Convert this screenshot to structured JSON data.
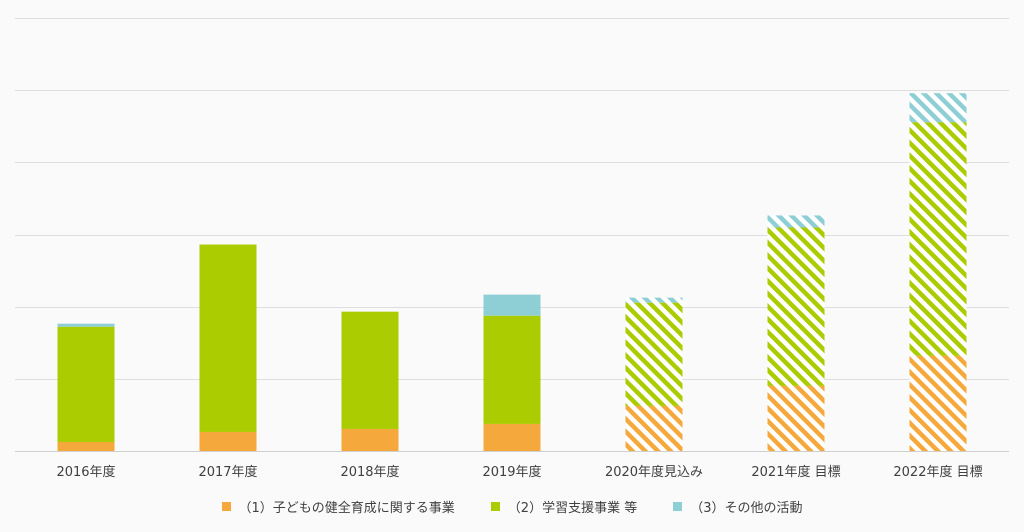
{
  "chart_data": {
    "type": "bar",
    "stacked": true,
    "categories": [
      "2016年度",
      "2017年度",
      "2018年度",
      "2019年度",
      "2020年度見込み",
      "2021年度 目標",
      "2022年度 目標"
    ],
    "projected": [
      false,
      false,
      false,
      false,
      true,
      true,
      true
    ],
    "series": [
      {
        "name": "（1）子どもの健全育成に関する事業",
        "color": "#f5a93c",
        "values": [
          9,
          19,
          22,
          27,
          45,
          65,
          95
        ]
      },
      {
        "name": "（2）学習支援事業 等",
        "color": "#aacc00",
        "values": [
          115,
          187,
          117,
          108,
          103,
          158,
          233
        ]
      },
      {
        "name": "（3）その他の活動",
        "color": "#8ecfd6",
        "values": [
          3,
          0,
          0,
          21,
          5,
          12,
          29
        ]
      }
    ],
    "ylim": [
      0,
      432
    ],
    "gridlines": [
      0,
      72,
      144,
      216,
      288,
      360,
      432
    ],
    "grid": true,
    "legend_position": "bottom"
  }
}
